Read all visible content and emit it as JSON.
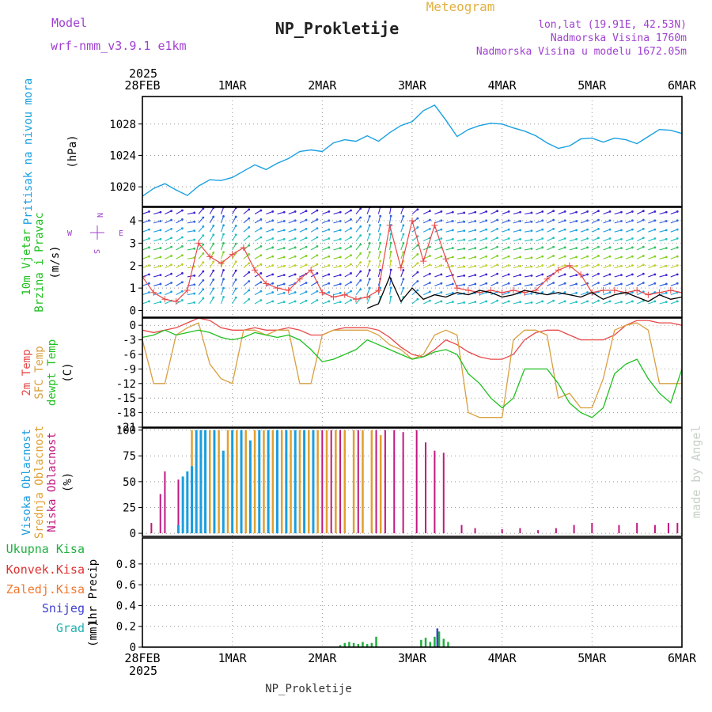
{
  "header": {
    "model_label": "Model",
    "model_name": "wrf-nmm_v3.9.1 e1km",
    "app_title": "Meteogram",
    "station": "NP_Prokletije",
    "lonlat": "lon,lat (19.91E, 42.53N)",
    "elevation": "Nadmorska Visina 1760m",
    "model_elevation": "Nadmorska Visina u modelu 1672.05m",
    "footer_station": "NP_Prokletije",
    "credit": "made by Angel"
  },
  "colors": {
    "frame": "#000000",
    "grid": "#999999",
    "pressure": "#1aa0e0",
    "temp2m": "#e84848",
    "sfc_temp": "#d8a040",
    "dewpt": "#20c020",
    "high_cloud": "#1a9ee0",
    "mid_cloud": "#e0a030",
    "low_cloud": "#c01880",
    "total_precip": "#20b040",
    "convective": "#e03030",
    "snow": "#4040d0",
    "graupel": "#20b0b0",
    "model_label": "#a040d0",
    "info_text": "#a040d0",
    "title_text": "#222222",
    "app_title": "#e0b040",
    "credit": "#c8d0c8"
  },
  "chart_data": {
    "type": "line",
    "x_axis": {
      "top_year": "2025",
      "bottom_year": "2025",
      "ticks": [
        "28FEB",
        "1MAR",
        "2MAR",
        "3MAR",
        "4MAR",
        "5MAR",
        "6MAR"
      ],
      "x_days": [
        0,
        1,
        2,
        3,
        4,
        5,
        6
      ]
    },
    "panels": [
      {
        "id": "pressure",
        "ylabel_lines": [
          "Pritisak na nivou mora"
        ],
        "unit": "(hPa)",
        "ylim": [
          1017.5,
          1031.5
        ],
        "yticks": [
          1020,
          1024,
          1028
        ],
        "grid": true,
        "series": [
          {
            "key": "pressure",
            "x": [
              0,
              0.125,
              0.25,
              0.375,
              0.5,
              0.625,
              0.75,
              0.875,
              1,
              1.125,
              1.25,
              1.375,
              1.5,
              1.625,
              1.75,
              1.875,
              2,
              2.125,
              2.25,
              2.375,
              2.5,
              2.625,
              2.75,
              2.875,
              3,
              3.125,
              3.25,
              3.375,
              3.5,
              3.625,
              3.75,
              3.875,
              4,
              4.125,
              4.25,
              4.375,
              4.5,
              4.625,
              4.75,
              4.875,
              5,
              5.125,
              5.25,
              5.375,
              5.5,
              5.625,
              5.75,
              5.875,
              6
            ],
            "values": [
              1018.8,
              1019.8,
              1020.4,
              1019.6,
              1018.9,
              1020.1,
              1020.9,
              1020.8,
              1021.2,
              1022.0,
              1022.8,
              1022.2,
              1023.0,
              1023.6,
              1024.5,
              1024.7,
              1024.5,
              1025.6,
              1026.0,
              1025.8,
              1026.5,
              1025.8,
              1026.9,
              1027.8,
              1028.3,
              1029.7,
              1030.4,
              1028.5,
              1026.4,
              1027.3,
              1027.8,
              1028.1,
              1028.0,
              1027.5,
              1027.1,
              1026.5,
              1025.6,
              1024.9,
              1025.2,
              1026.1,
              1026.2,
              1025.7,
              1026.2,
              1026.0,
              1025.5,
              1026.4,
              1027.3,
              1027.2,
              1026.8
            ]
          }
        ]
      },
      {
        "id": "wind",
        "ylabel_lines": [
          "10m Vjetar",
          "Brzina i Pravac"
        ],
        "unit": "(m/s)",
        "compass": {
          "n": "N",
          "s": "S",
          "e": "E",
          "w": "W"
        },
        "ylim": [
          -0.3,
          4.6
        ],
        "yticks": [
          0,
          1,
          2,
          3,
          4
        ],
        "grid": true,
        "speed": {
          "x": [
            0,
            0.125,
            0.25,
            0.375,
            0.5,
            0.625,
            0.75,
            0.875,
            1,
            1.125,
            1.25,
            1.375,
            1.5,
            1.625,
            1.75,
            1.875,
            2,
            2.125,
            2.25,
            2.375,
            2.5,
            2.625,
            2.75,
            2.875,
            3,
            3.125,
            3.25,
            3.375,
            3.5,
            3.625,
            3.75,
            3.875,
            4,
            4.125,
            4.25,
            4.375,
            4.5,
            4.625,
            4.75,
            4.875,
            5,
            5.125,
            5.25,
            5.375,
            5.5,
            5.625,
            5.75,
            5.875,
            6
          ],
          "values": [
            1.5,
            0.8,
            0.5,
            0.4,
            0.9,
            3.0,
            2.4,
            2.1,
            2.5,
            2.8,
            1.8,
            1.2,
            1.0,
            0.9,
            1.4,
            1.8,
            0.8,
            0.6,
            0.7,
            0.5,
            0.6,
            0.9,
            3.8,
            1.9,
            4.0,
            2.2,
            3.8,
            2.3,
            1.0,
            0.9,
            0.8,
            0.9,
            0.8,
            0.9,
            0.8,
            0.9,
            1.4,
            1.8,
            2.0,
            1.6,
            0.8,
            0.9,
            0.9,
            0.8,
            0.9,
            0.7,
            0.8,
            0.9,
            0.8
          ]
        },
        "gust": {
          "x": [
            2.5,
            2.625,
            2.75,
            2.875,
            3,
            3.125,
            3.25,
            3.375,
            3.5,
            3.625,
            3.75,
            3.875,
            4,
            4.125,
            4.25,
            4.375,
            4.5,
            4.625,
            4.75,
            4.875,
            5,
            5.125,
            5.25,
            5.375,
            5.5,
            5.625,
            5.75,
            5.875,
            6
          ],
          "values": [
            0.1,
            0.3,
            1.5,
            0.4,
            1.0,
            0.5,
            0.7,
            0.6,
            0.8,
            0.7,
            0.9,
            0.8,
            0.6,
            0.7,
            0.9,
            0.8,
            0.7,
            0.8,
            0.7,
            0.6,
            0.8,
            0.5,
            0.7,
            0.8,
            0.6,
            0.4,
            0.7,
            0.5,
            0.6
          ]
        },
        "arrow_rows": [
          4.3,
          3.9,
          3.5,
          3.1,
          2.7,
          2.3,
          1.9,
          1.5,
          1.1,
          0.7,
          0.3
        ],
        "arrow_direction_deg": [
          250,
          255,
          245,
          240,
          260,
          220,
          210,
          200,
          210,
          230,
          240,
          250,
          255,
          250,
          245,
          240,
          250,
          255,
          240,
          220,
          200,
          195,
          190,
          200,
          230,
          245,
          250,
          255,
          260,
          255,
          250,
          245,
          250,
          255,
          260,
          250,
          245,
          250,
          255,
          250,
          245,
          250,
          255,
          250,
          245,
          250,
          255,
          250,
          245
        ],
        "arrow_colors": [
          "#4020d0",
          "#3060e0",
          "#20a0e0",
          "#20c0c0",
          "#30c060",
          "#80d020",
          "#c0d020"
        ]
      },
      {
        "id": "temperature",
        "ylabel_lines": [
          "2m Temp",
          "SFC Temp",
          "dewpt Temp"
        ],
        "unit": "(C)",
        "ylim": [
          -21,
          1.5
        ],
        "yticks": [
          0,
          -3,
          -6,
          -9,
          -12,
          -15,
          -18,
          -21
        ],
        "grid": true,
        "series": [
          {
            "key": "temp2m",
            "name": "2m Temp",
            "x": [
              0,
              0.125,
              0.25,
              0.375,
              0.5,
              0.625,
              0.75,
              0.875,
              1,
              1.125,
              1.25,
              1.375,
              1.5,
              1.625,
              1.75,
              1.875,
              2,
              2.125,
              2.25,
              2.375,
              2.5,
              2.625,
              2.75,
              2.875,
              3,
              3.125,
              3.25,
              3.375,
              3.5,
              3.625,
              3.75,
              3.875,
              4,
              4.125,
              4.25,
              4.375,
              4.5,
              4.625,
              4.75,
              4.875,
              5,
              5.125,
              5.25,
              5.375,
              5.5,
              5.625,
              5.75,
              5.875,
              6
            ],
            "values": [
              -1,
              -1.5,
              -1,
              -0.5,
              0.5,
              1.5,
              1,
              -0.5,
              -1,
              -1,
              -0.5,
              -1,
              -1,
              -0.5,
              -1,
              -2,
              -2,
              -1,
              -0.5,
              -0.5,
              -0.5,
              -1,
              -2.5,
              -4.5,
              -6,
              -6.5,
              -5,
              -3,
              -4,
              -5.5,
              -6.5,
              -7,
              -7,
              -6,
              -3,
              -1.5,
              -1,
              -1,
              -2,
              -3,
              -3,
              -3,
              -2,
              0,
              1,
              1,
              0.5,
              0.5,
              0
            ]
          },
          {
            "key": "sfc_temp",
            "name": "SFC Temp",
            "x": [
              0,
              0.125,
              0.25,
              0.375,
              0.5,
              0.625,
              0.75,
              0.875,
              1,
              1.125,
              1.25,
              1.375,
              1.5,
              1.625,
              1.75,
              1.875,
              2,
              2.125,
              2.25,
              2.375,
              2.5,
              2.625,
              2.75,
              2.875,
              3,
              3.125,
              3.25,
              3.375,
              3.5,
              3.625,
              3.75,
              3.875,
              4,
              4.125,
              4.25,
              4.375,
              4.5,
              4.625,
              4.75,
              4.875,
              5,
              5.125,
              5.25,
              5.375,
              5.5,
              5.625,
              5.75,
              5.875,
              6
            ],
            "values": [
              -3,
              -12,
              -12,
              -2,
              -0.5,
              0.5,
              -8,
              -11,
              -12,
              -1,
              -1,
              -2,
              -1,
              -1,
              -12,
              -12,
              -2,
              -1,
              -1,
              -1,
              -1,
              -2,
              -4,
              -5,
              -7,
              -6,
              -2,
              -1,
              -2,
              -18,
              -19,
              -19,
              -19,
              -3,
              -1,
              -1,
              -2,
              -15,
              -14,
              -17,
              -17,
              -11,
              -1,
              0,
              0.5,
              -1,
              -12,
              -12,
              -12
            ]
          },
          {
            "key": "dewpt",
            "name": "dewpt Temp",
            "x": [
              0,
              0.125,
              0.25,
              0.375,
              0.5,
              0.625,
              0.75,
              0.875,
              1,
              1.125,
              1.25,
              1.375,
              1.5,
              1.625,
              1.75,
              1.875,
              2,
              2.125,
              2.25,
              2.375,
              2.5,
              2.625,
              2.75,
              2.875,
              3,
              3.125,
              3.25,
              3.375,
              3.5,
              3.625,
              3.75,
              3.875,
              4,
              4.125,
              4.25,
              4.375,
              4.5,
              4.625,
              4.75,
              4.875,
              5,
              5.125,
              5.25,
              5.375,
              5.5,
              5.625,
              5.75,
              5.875,
              6
            ],
            "values": [
              -2.5,
              -2,
              -1,
              -2,
              -1.5,
              -1,
              -1.5,
              -2.5,
              -3,
              -2.5,
              -1.5,
              -2,
              -2.5,
              -2,
              -3,
              -5,
              -7.5,
              -7,
              -6,
              -5,
              -3,
              -4,
              -5,
              -6,
              -7,
              -6.5,
              -5.5,
              -5,
              -6,
              -10,
              -12,
              -15,
              -17,
              -15,
              -9,
              -9,
              -9,
              -12,
              -16,
              -18,
              -19,
              -17,
              -10,
              -8,
              -7,
              -11,
              -14,
              -16,
              -9
            ]
          }
        ]
      },
      {
        "id": "cloud",
        "ylabel_lines": [
          "Visoka Oblacnost",
          "Srednja Oblacnost",
          "Niska Oblacnost"
        ],
        "unit": "(%)",
        "ylim": [
          -3,
          102
        ],
        "yticks": [
          0,
          25,
          50,
          75,
          100
        ],
        "grid": true,
        "high": {
          "x": [
            0.4,
            0.45,
            0.5,
            0.55,
            0.6,
            0.65,
            0.7,
            0.8,
            0.9,
            1.0,
            1.1,
            1.2,
            1.3,
            1.4,
            1.5,
            1.6,
            1.7,
            1.8,
            1.9
          ],
          "values": [
            8,
            55,
            60,
            65,
            100,
            100,
            100,
            100,
            80,
            100,
            100,
            90,
            100,
            100,
            100,
            100,
            100,
            100,
            100
          ]
        },
        "mid": {
          "x": [
            0.55,
            0.65,
            0.75,
            0.85,
            0.95,
            1.05,
            1.15,
            1.25,
            1.35,
            1.45,
            1.55,
            1.65,
            1.75,
            1.85,
            1.95,
            2.05,
            2.15,
            2.25,
            2.35,
            2.45,
            2.55,
            2.65
          ],
          "values": [
            100,
            100,
            100,
            100,
            100,
            100,
            100,
            100,
            100,
            100,
            100,
            100,
            100,
            100,
            100,
            100,
            100,
            100,
            100,
            100,
            100,
            95
          ]
        },
        "low": {
          "x": [
            0.1,
            0.2,
            0.25,
            0.4,
            0.6,
            0.7,
            0.8,
            1.0,
            1.3,
            1.6,
            1.9,
            2.0,
            2.1,
            2.2,
            2.4,
            2.6,
            2.7,
            2.8,
            2.9,
            3.05,
            3.15,
            3.25,
            3.35,
            3.55,
            3.7,
            4.0,
            4.2,
            4.4,
            4.6,
            4.8,
            5.0,
            5.3,
            5.5,
            5.7,
            5.85,
            5.95
          ],
          "values": [
            10,
            38,
            60,
            52,
            100,
            100,
            100,
            100,
            100,
            100,
            100,
            100,
            100,
            100,
            100,
            100,
            100,
            100,
            98,
            100,
            88,
            80,
            78,
            8,
            5,
            4,
            5,
            3,
            5,
            8,
            10,
            8,
            10,
            8,
            10,
            10
          ]
        }
      },
      {
        "id": "precip",
        "ylabel_lines": [
          "1hr Precip"
        ],
        "unit": "(mm)",
        "legend": [
          {
            "key": "total_precip",
            "label": "Ukupna Kisa"
          },
          {
            "key": "convective",
            "label": "Konvek.Kisa"
          },
          {
            "key": "frozen",
            "label": "Zaledj.Kisa"
          },
          {
            "key": "snow",
            "label": "Snijeg"
          },
          {
            "key": "graupel",
            "label": "Grad"
          }
        ],
        "ylim": [
          0,
          1.05
        ],
        "yticks": [
          0,
          0.2,
          0.4,
          0.6,
          0.8
        ],
        "grid": true,
        "total": {
          "x": [
            2.2,
            2.25,
            2.3,
            2.35,
            2.4,
            2.45,
            2.5,
            2.55,
            2.6,
            3.1,
            3.15,
            3.2,
            3.25,
            3.3,
            3.35,
            3.4
          ],
          "values": [
            0.02,
            0.04,
            0.05,
            0.04,
            0.03,
            0.05,
            0.03,
            0.04,
            0.1,
            0.07,
            0.09,
            0.05,
            0.1,
            0.15,
            0.08,
            0.05
          ]
        },
        "snow": {
          "x": [
            3.28
          ],
          "values": [
            0.18
          ]
        }
      }
    ]
  }
}
